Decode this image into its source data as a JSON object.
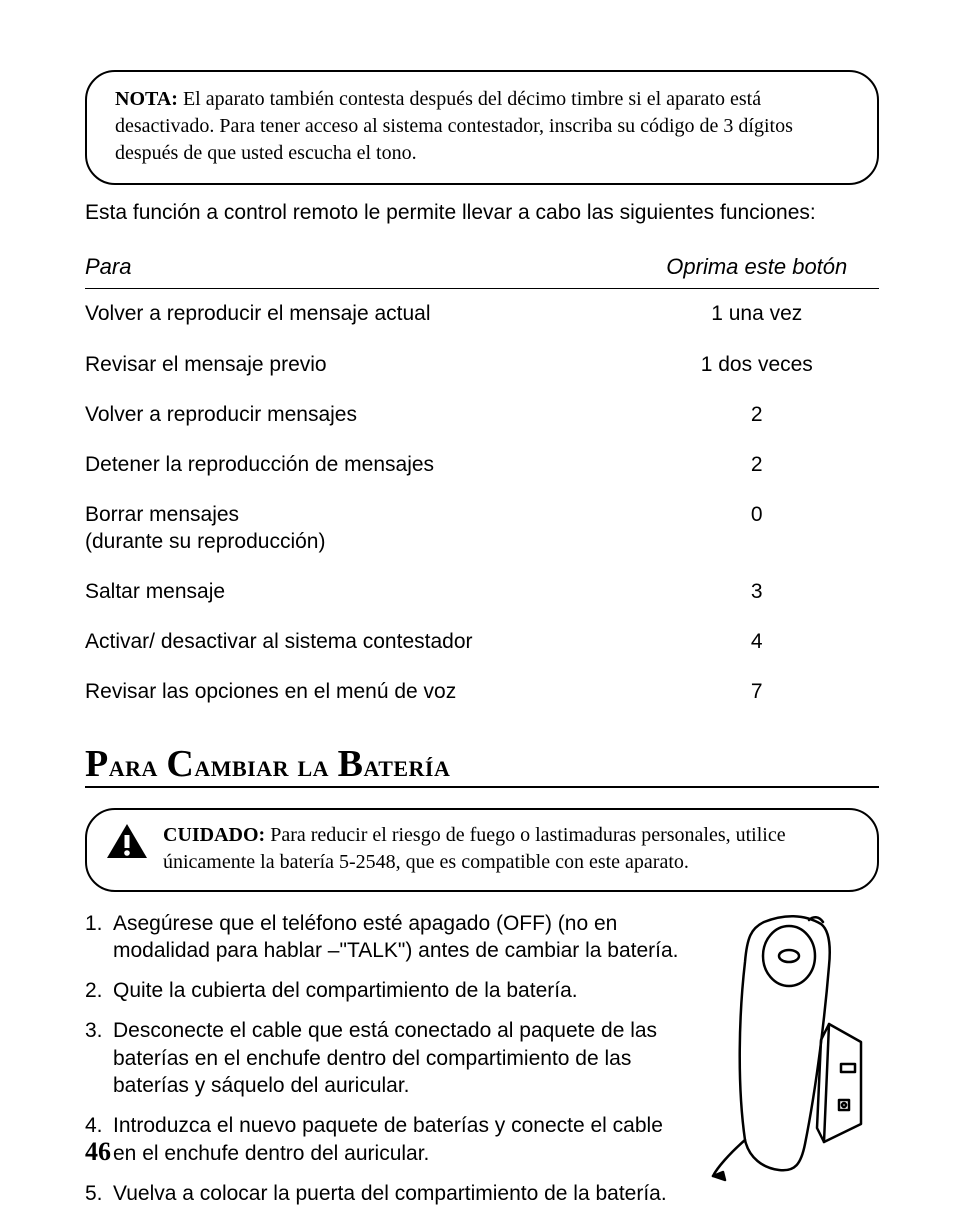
{
  "note": {
    "label": "NOTA:",
    "text": " El aparato también contesta después del décimo timbre si el aparato está desactivado. Para tener acceso al sistema contestador, inscriba su código de 3 dígitos después de que usted escucha el tono."
  },
  "intro": "Esta función a control remoto le permite llevar a cabo las siguientes funciones:",
  "table": {
    "header_para": "Para",
    "header_btn": "Oprima este botón",
    "rows": [
      {
        "para": "Volver a reproducir el mensaje actual",
        "btn": "1 una vez"
      },
      {
        "para": "Revisar el mensaje previo",
        "btn": "1 dos veces"
      },
      {
        "para": "Volver a reproducir mensajes",
        "btn": "2"
      },
      {
        "para": "Detener la reproducción de mensajes",
        "btn": "2"
      },
      {
        "para": "Borrar mensajes\n(durante su reproducción)",
        "btn": "0"
      },
      {
        "para": "Saltar mensaje",
        "btn": "3"
      },
      {
        "para": "Activar/ desactivar al sistema contestador",
        "btn": "4"
      },
      {
        "para": "Revisar las opciones en el menú de voz",
        "btn": "7"
      }
    ]
  },
  "heading": "Para Cambiar la Batería",
  "warn": {
    "label": "CUIDADO:",
    "text": " Para reducir el riesgo de fuego o lastimaduras personales, utilice únicamente la batería 5-2548, que es compatible con este aparato."
  },
  "steps": [
    "Asegúrese que el teléfono esté apagado (OFF) (no en modalidad para hablar –\"TALK\") antes de cambiar la batería.",
    "Quite la cubierta del compartimiento de la batería.",
    "Desconecte el cable que está conectado al paquete de las baterías en el enchufe dentro del compartimiento de las baterías y sáquelo del auricular.",
    "Introduzca el nuevo paquete de baterías y conecte el cable en el enchufe dentro del auricular.",
    "Vuelva a colocar la puerta del compartimiento de la batería."
  ],
  "page_number": "46"
}
